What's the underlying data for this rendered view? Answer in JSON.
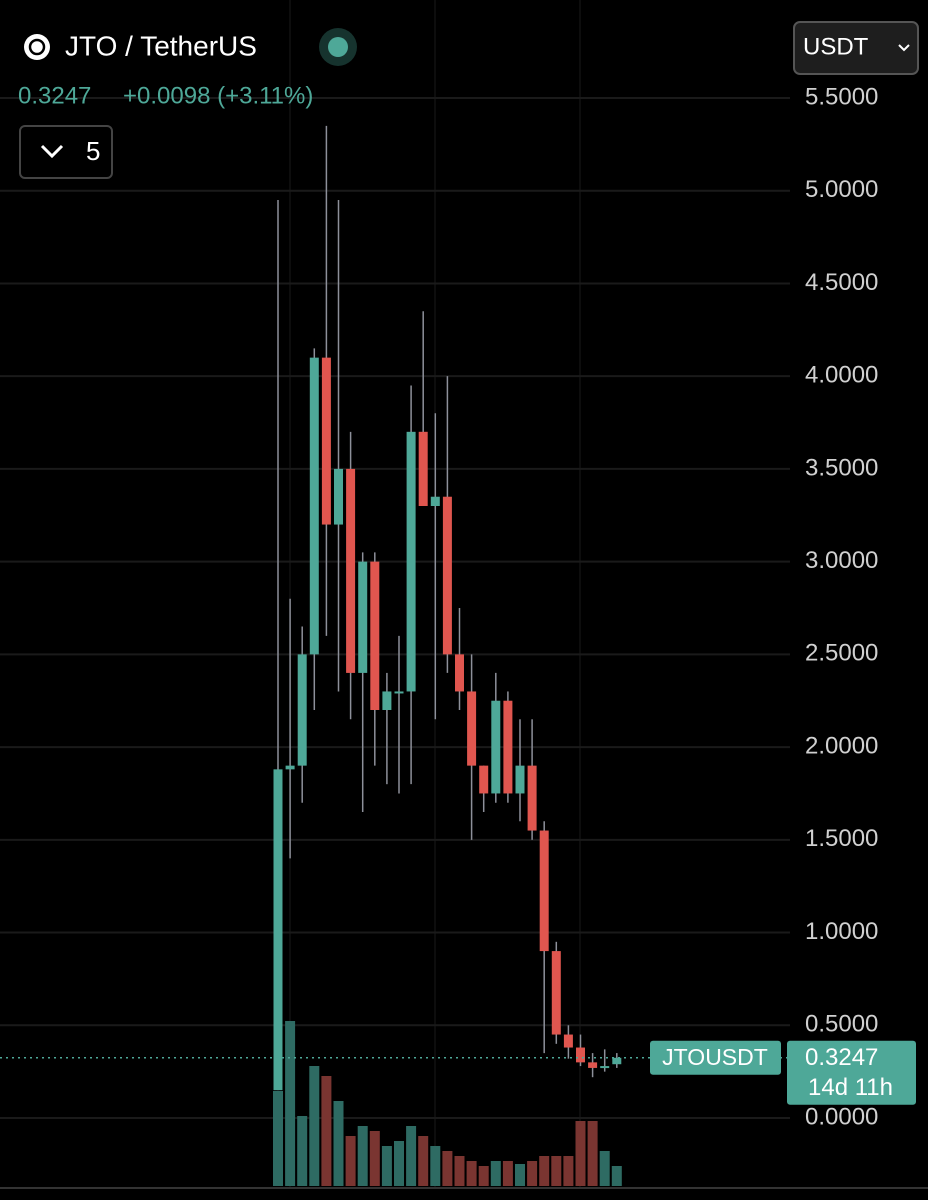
{
  "header": {
    "title": "JTO / TetherUS",
    "change": "+0.0098 (+3.11%)",
    "indicator_count": "5",
    "currency": "USDT"
  },
  "chart_data": {
    "type": "candlestick",
    "symbol_label": "JTOUSDT",
    "countdown": "14d 11h",
    "last_price": 0.3247,
    "open": [
      0.15,
      1.88,
      1.9,
      2.5,
      4.1,
      3.2,
      3.5,
      2.4,
      3.0,
      2.2,
      2.3,
      2.3,
      3.7,
      3.3,
      3.35,
      2.5,
      2.3,
      1.9,
      1.75,
      2.25,
      1.75,
      1.9,
      1.55,
      0.9,
      0.45,
      0.38,
      0.3,
      0.28,
      0.29
    ],
    "high": [
      4.95,
      2.8,
      2.65,
      4.15,
      5.35,
      4.95,
      3.7,
      3.05,
      3.05,
      2.4,
      2.6,
      3.95,
      4.35,
      3.8,
      4.0,
      2.75,
      2.5,
      1.9,
      2.4,
      2.3,
      2.15,
      2.15,
      1.6,
      0.95,
      0.5,
      0.45,
      0.35,
      0.37,
      0.35
    ],
    "low": [
      0.15,
      1.4,
      1.7,
      2.2,
      2.6,
      2.3,
      2.15,
      1.65,
      1.9,
      1.8,
      1.75,
      1.8,
      3.3,
      2.15,
      2.4,
      2.2,
      1.5,
      1.65,
      1.7,
      1.7,
      1.6,
      1.5,
      0.35,
      0.4,
      0.32,
      0.28,
      0.22,
      0.25,
      0.27
    ],
    "close": [
      1.88,
      1.9,
      2.5,
      4.1,
      3.2,
      3.5,
      2.4,
      3.0,
      2.2,
      2.3,
      2.3,
      3.7,
      3.3,
      3.35,
      2.5,
      2.3,
      1.9,
      1.75,
      2.25,
      1.75,
      1.9,
      1.55,
      0.9,
      0.45,
      0.38,
      0.3,
      0.27,
      0.28,
      0.3247
    ],
    "volume": [
      95,
      165,
      70,
      120,
      110,
      85,
      50,
      60,
      55,
      40,
      45,
      60,
      50,
      40,
      35,
      30,
      25,
      20,
      25,
      25,
      22,
      25,
      30,
      30,
      30,
      65,
      65,
      35,
      20
    ],
    "up_color": "#4ea898",
    "down_color": "#e0564f",
    "ylim": [
      0,
      5.5
    ],
    "yticks": [
      {
        "value": 0,
        "label": "0.0000"
      },
      {
        "value": 0.5,
        "label": "0.5000"
      },
      {
        "value": 1,
        "label": "1.0000"
      },
      {
        "value": 1.5,
        "label": "1.5000"
      },
      {
        "value": 2,
        "label": "2.0000"
      },
      {
        "value": 2.5,
        "label": "2.5000"
      },
      {
        "value": 3,
        "label": "3.0000"
      },
      {
        "value": 3.5,
        "label": "3.5000"
      },
      {
        "value": 4,
        "label": "4.0000"
      },
      {
        "value": 4.5,
        "label": "4.5000"
      },
      {
        "value": 5,
        "label": "5.0000"
      },
      {
        "value": 5.5,
        "label": "5.5000"
      }
    ],
    "grid": true
  }
}
